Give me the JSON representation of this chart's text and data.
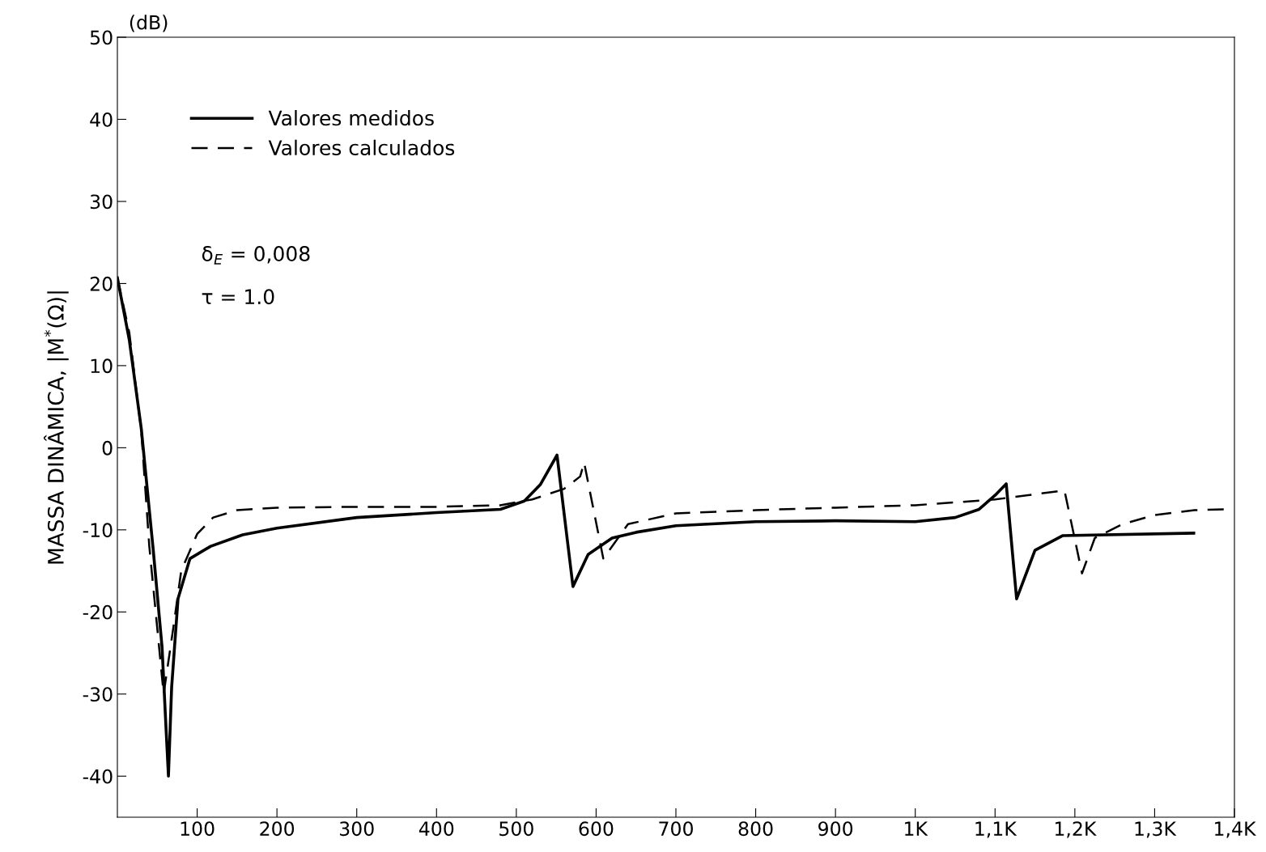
{
  "chart_data": {
    "type": "line",
    "ylabel": "MASSA DINÂMICA, |M$^{*}$(Ω)|",
    "annotations": [
      "(dB)",
      "δ$_{E}$ = 0,008",
      "τ = 1.0"
    ],
    "xlim": [
      0,
      1400
    ],
    "ylim": [
      -45,
      50
    ],
    "xticks": [
      {
        "value": 100,
        "label": "100"
      },
      {
        "value": 200,
        "label": "200"
      },
      {
        "value": 300,
        "label": "300"
      },
      {
        "value": 400,
        "label": "400"
      },
      {
        "value": 500,
        "label": "500"
      },
      {
        "value": 600,
        "label": "600"
      },
      {
        "value": 700,
        "label": "700"
      },
      {
        "value": 800,
        "label": "800"
      },
      {
        "value": 900,
        "label": "900"
      },
      {
        "value": 1000,
        "label": "1K"
      },
      {
        "value": 1100,
        "label": "1,1K"
      },
      {
        "value": 1200,
        "label": "1,2K"
      },
      {
        "value": 1300,
        "label": "1,3K"
      },
      {
        "value": 1400,
        "label": "1,4K"
      }
    ],
    "yticks": [
      -40,
      -30,
      -20,
      -10,
      0,
      10,
      20,
      30,
      40,
      50
    ],
    "grid": false,
    "legend": "top left",
    "series": [
      {
        "name": "Valores medidos",
        "color": "#000000",
        "line_style": "solid",
        "x": [
          0,
          15,
          30,
          45,
          56,
          61,
          64,
          68,
          76,
          91,
          117,
          157,
          200,
          300,
          400,
          480,
          510,
          530,
          551,
          571,
          590,
          620,
          650,
          700,
          800,
          900,
          1000,
          1050,
          1080,
          1100,
          1114,
          1127,
          1150,
          1185,
          1349
        ],
        "values": [
          20.7,
          13.1,
          2.3,
          -12.5,
          -24.3,
          -34.2,
          -40,
          -29.2,
          -18.4,
          -13.5,
          -12,
          -10.6,
          -9.8,
          -8.5,
          -7.9,
          -7.5,
          -6.5,
          -4.5,
          -0.9,
          -16.9,
          -13,
          -11,
          -10.3,
          -9.5,
          -9,
          -8.9,
          -9,
          -8.5,
          -7.5,
          -5.8,
          -4.4,
          -18.4,
          -12.5,
          -10.7,
          -10.4
        ]
      },
      {
        "name": "Valores calculados",
        "color": "#000000",
        "line_style": "dashed",
        "x": [
          0,
          15,
          30,
          40,
          50,
          58,
          70,
          80,
          100,
          120,
          150,
          200,
          300,
          400,
          480,
          520,
          560,
          580,
          585,
          609,
          640,
          700,
          800,
          900,
          1000,
          1100,
          1187,
          1209,
          1225,
          1260,
          1300,
          1350,
          1390
        ],
        "values": [
          20.7,
          14,
          2,
          -12,
          -22,
          -30,
          -22,
          -15,
          -10.5,
          -8.5,
          -7.6,
          -7.3,
          -7.2,
          -7.2,
          -7,
          -6.3,
          -5,
          -3.5,
          -1.8,
          -13.5,
          -9.3,
          -8,
          -7.6,
          -7.3,
          -7,
          -6.3,
          -5.2,
          -15.3,
          -11,
          -9.3,
          -8.2,
          -7.6,
          -7.5
        ]
      }
    ]
  }
}
